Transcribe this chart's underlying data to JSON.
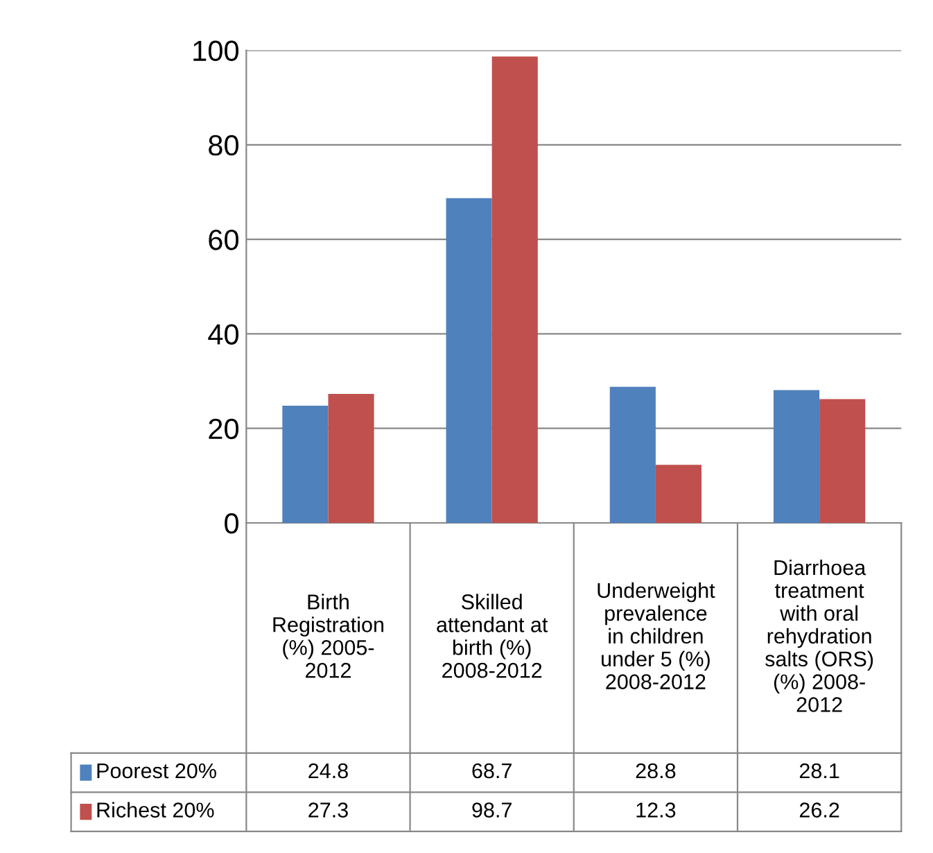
{
  "chart_data": {
    "type": "bar",
    "categories": [
      "Birth\nRegistration\n(%) 2005-\n2012",
      "Skilled\nattendant at\nbirth (%)\n2008-2012",
      "Underweight\nprevalence\nin children\nunder 5 (%)\n2008-2012",
      "Diarrhoea\ntreatment\nwith oral\nrehydration\nsalts (ORS)\n(%) 2008-\n2012"
    ],
    "series": [
      {
        "name": "Poorest 20%",
        "color": "#4f81bd",
        "values": [
          24.8,
          68.7,
          28.8,
          28.1
        ]
      },
      {
        "name": "Richest 20%",
        "color": "#c0504d",
        "values": [
          27.3,
          98.7,
          12.3,
          26.2
        ]
      }
    ],
    "ylim": [
      0,
      100
    ],
    "yticks": [
      0,
      20,
      40,
      60,
      80,
      100
    ],
    "grid": "y",
    "legend": "bottom",
    "data_labels": true
  }
}
